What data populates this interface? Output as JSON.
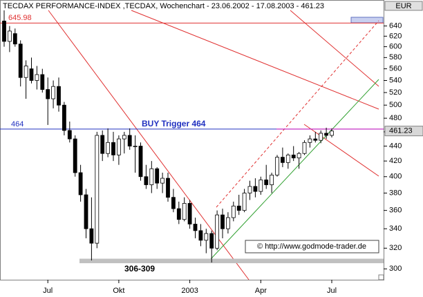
{
  "chart_data": {
    "type": "candlestick",
    "title": "TECDAX PERFORMANCE-INDEX ,TECDAX, Wochenchart - 23.06.2002 - 17.08.2003 - 461.23",
    "currency": "EUR",
    "categories": [
      null,
      null,
      null,
      null,
      null,
      null,
      null,
      null,
      "Jul",
      null,
      null,
      null,
      null,
      null,
      null,
      null,
      null,
      null,
      null,
      null,
      null,
      "Okt",
      null,
      null,
      null,
      null,
      null,
      null,
      null,
      null,
      null,
      null,
      null,
      null,
      "2003",
      null,
      null,
      null,
      null,
      null,
      null,
      null,
      null,
      null,
      null,
      null,
      null,
      "Apr",
      null,
      null,
      null,
      null,
      null,
      null,
      null,
      null,
      null,
      null,
      null,
      null,
      "Jul"
    ],
    "open": [
      650,
      610,
      625,
      605,
      545,
      560,
      540,
      550,
      525,
      510,
      530,
      500,
      462,
      450,
      405,
      378,
      340,
      325,
      455,
      430,
      445,
      428,
      450,
      455,
      440,
      440,
      400,
      390,
      410,
      392,
      398,
      375,
      362,
      350,
      368,
      345,
      338,
      328,
      335,
      320,
      355,
      340,
      352,
      365,
      360,
      380,
      388,
      382,
      396,
      390,
      402,
      425,
      418,
      428,
      424,
      430,
      445,
      450,
      448,
      458,
      455
    ],
    "high": [
      672,
      640,
      635,
      612,
      575,
      580,
      565,
      560,
      545,
      540,
      545,
      505,
      475,
      455,
      415,
      385,
      375,
      460,
      462,
      465,
      460,
      455,
      460,
      465,
      455,
      445,
      415,
      420,
      412,
      405,
      405,
      385,
      370,
      375,
      372,
      352,
      345,
      340,
      338,
      360,
      362,
      358,
      370,
      378,
      385,
      395,
      398,
      400,
      415,
      405,
      428,
      438,
      430,
      440,
      432,
      448,
      455,
      460,
      462,
      466,
      465
    ],
    "low": [
      600,
      590,
      600,
      530,
      510,
      535,
      525,
      520,
      470,
      495,
      490,
      455,
      445,
      400,
      370,
      330,
      308,
      320,
      420,
      425,
      420,
      415,
      430,
      435,
      405,
      395,
      385,
      380,
      385,
      380,
      370,
      358,
      345,
      348,
      340,
      330,
      322,
      315,
      306,
      318,
      330,
      335,
      348,
      355,
      358,
      372,
      375,
      378,
      385,
      380,
      400,
      412,
      410,
      420,
      410,
      428,
      438,
      445,
      444,
      450,
      452
    ],
    "close": [
      610,
      630,
      605,
      545,
      565,
      540,
      550,
      525,
      510,
      530,
      500,
      462,
      450,
      405,
      378,
      340,
      325,
      455,
      430,
      445,
      428,
      450,
      455,
      440,
      440,
      400,
      390,
      410,
      392,
      398,
      375,
      362,
      350,
      368,
      345,
      338,
      328,
      335,
      320,
      355,
      340,
      352,
      365,
      360,
      380,
      388,
      382,
      396,
      390,
      402,
      425,
      418,
      428,
      424,
      430,
      445,
      450,
      448,
      458,
      455,
      461.23
    ],
    "up_color": "#ffffff",
    "down_color": "#000000",
    "log_scale": true,
    "ylim": [
      290,
      672
    ],
    "yticks": [
      300,
      320,
      340,
      360,
      380,
      400,
      420,
      440,
      460,
      480,
      500,
      520,
      540,
      560,
      580,
      600,
      620,
      640
    ],
    "last_price": 461.23,
    "resistance": 645.98,
    "buy_trigger": 464,
    "buy_label": "BUY Trigger 464",
    "support_zone": [
      306,
      309
    ],
    "support_label": "306-309",
    "watermark": "© http://www.godmode-trader.de"
  }
}
